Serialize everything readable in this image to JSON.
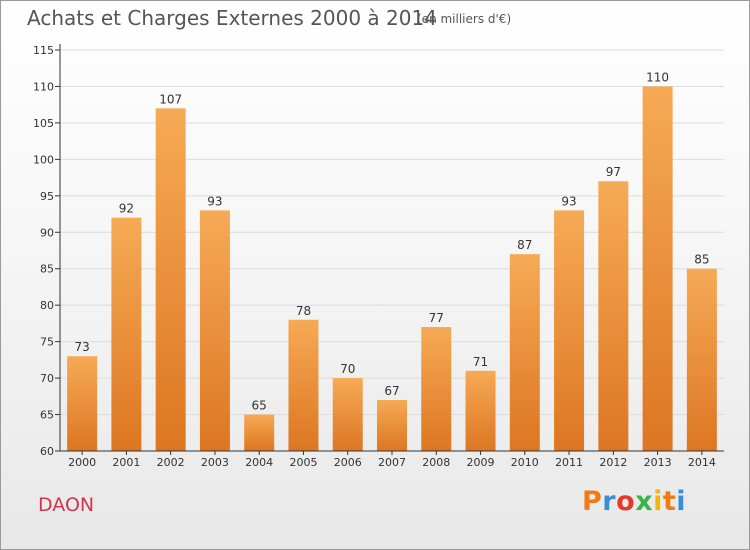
{
  "header": {
    "title": "Achats et Charges Externes 2000 à 2014",
    "subtitle": "(en milliers d'€)"
  },
  "footer": {
    "commune": "DAON",
    "logo_text": "Proxiti",
    "logo_colors": [
      "#f07b13",
      "#3a8fd4",
      "#e6392b",
      "#3db24a",
      "#f2b705",
      "#f07b13",
      "#3a8fd4"
    ]
  },
  "colors": {
    "bar_light": "#f6aa55",
    "bar_dark": "#dd7622",
    "grid": "#dcdcdc",
    "axis": "#333333"
  },
  "chart_data": {
    "type": "bar",
    "title": "Achats et Charges Externes 2000 à 2014",
    "subtitle": "(en milliers d'€)",
    "categories": [
      "2000",
      "2001",
      "2002",
      "2003",
      "2004",
      "2005",
      "2006",
      "2007",
      "2008",
      "2009",
      "2010",
      "2011",
      "2012",
      "2013",
      "2014"
    ],
    "values": [
      73,
      92,
      107,
      93,
      65,
      78,
      70,
      67,
      77,
      71,
      87,
      93,
      97,
      110,
      85
    ],
    "ylim": [
      60,
      115
    ],
    "yticks": [
      60,
      65,
      70,
      75,
      80,
      85,
      90,
      95,
      100,
      105,
      110,
      115
    ],
    "xlabel": "",
    "ylabel": "",
    "grid": true
  }
}
